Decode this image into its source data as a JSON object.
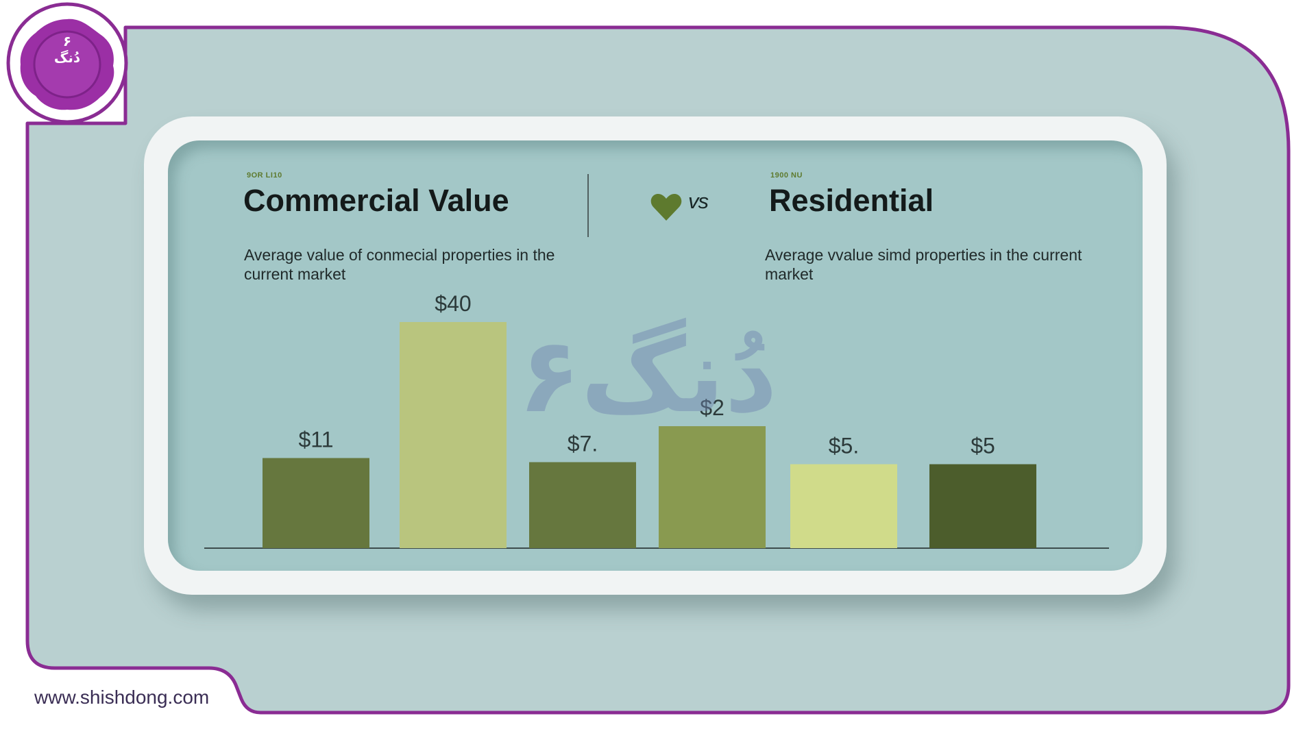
{
  "brand": {
    "logo_text": "۶ دُنگ",
    "watermark": "۶دُنگ",
    "website": "www.shishdong.com"
  },
  "left_panel": {
    "tag": "9OR LI10",
    "title": "Commercial Value",
    "description": "Average value of conmecial properties in the current market"
  },
  "right_panel": {
    "tag": "1900 NU",
    "title": "Residential",
    "description": "Average vvalue simd properties in the current market"
  },
  "vs_label": "vs",
  "icons": {
    "heart": "heart-icon",
    "logo": "wax-seal-logo-icon"
  },
  "colors": {
    "frame_border": "#8a2c93",
    "logo_purple": "#9b2fa5",
    "background": "#b9d0d0",
    "panel": "#a3c7c7",
    "bar_dark": "#4c5d2c",
    "bar_mid": "#66773e",
    "bar_olive": "#899a50",
    "bar_light": "#b9c57e",
    "heart": "#5e7a2e"
  },
  "chart_data": {
    "type": "bar",
    "categories": [
      "",
      "",
      "",
      "",
      "",
      ""
    ],
    "values": [
      11,
      40,
      7,
      2,
      5,
      5
    ],
    "labels": [
      "$11",
      "$40",
      "$7.",
      "$2",
      "$5.",
      "$5"
    ],
    "bar_colors": [
      "#66773e",
      "#b9c57e",
      "#66773e",
      "#899a50",
      "#d0db8a",
      "#4c5d2c"
    ],
    "title": "",
    "xlabel": "",
    "ylabel": "",
    "grid": false,
    "legend": "none"
  }
}
